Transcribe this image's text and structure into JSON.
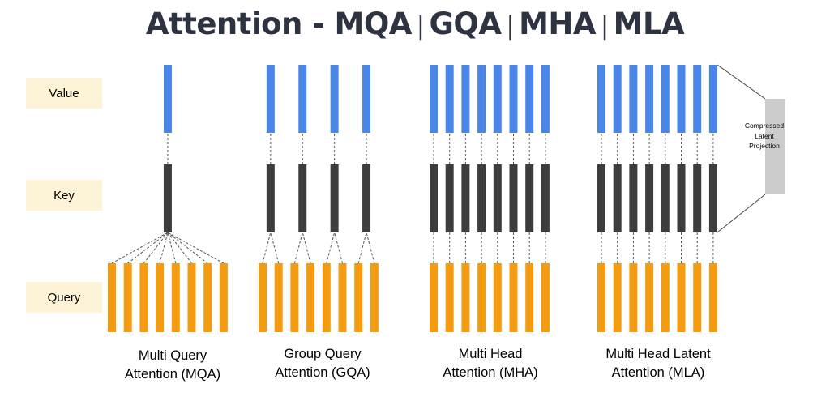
{
  "title": {
    "part1": "Attention - MQA",
    "sep1": "|",
    "part2": "GQA",
    "sep2": "|",
    "part3": "MHA",
    "sep3": "|",
    "part4": "MLA"
  },
  "row_labels": {
    "value": "Value",
    "key": "Key",
    "query": "Query"
  },
  "latent_label": [
    "Compressed",
    "Latent",
    "Projection"
  ],
  "captions": {
    "mqa": [
      "Multi Query",
      "Attention (MQA)"
    ],
    "gqa": [
      "Group Query",
      "Attention (GQA)"
    ],
    "mha": [
      "Multi Head",
      "Attention (MHA)"
    ],
    "mla": [
      "Multi Head Latent",
      "Attention (MLA)"
    ]
  },
  "schemes": [
    {
      "id": "mqa",
      "query_heads": 8,
      "key_heads": 1,
      "value_heads": 1
    },
    {
      "id": "gqa",
      "query_heads": 8,
      "key_heads": 4,
      "value_heads": 4
    },
    {
      "id": "mha",
      "query_heads": 8,
      "key_heads": 8,
      "value_heads": 8
    },
    {
      "id": "mla",
      "query_heads": 8,
      "key_heads": 8,
      "value_heads": 8
    }
  ],
  "colors": {
    "value": "#4a86e8",
    "key": "#3d3d3d",
    "query": "#f39c12",
    "label_bg": "#fdf3d6",
    "latent_box": "#cccccc",
    "connector": "#555555",
    "title": "#2d3340"
  }
}
